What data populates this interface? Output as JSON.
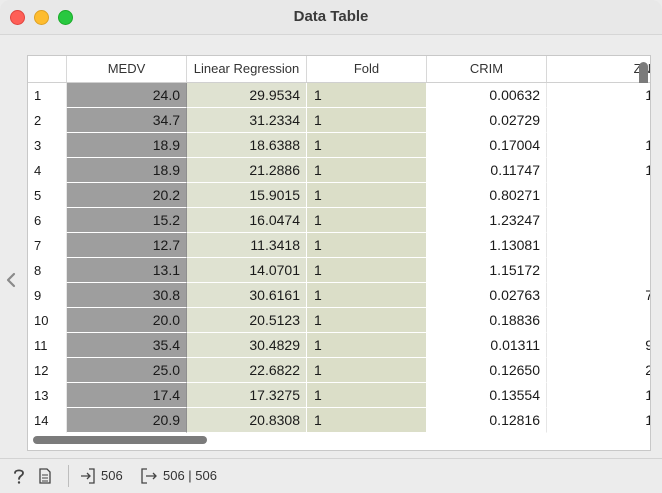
{
  "window": {
    "title": "Data Table"
  },
  "table": {
    "columns": [
      "MEDV",
      "Linear Regression",
      "Fold",
      "CRIM",
      "ZN"
    ],
    "rows": [
      {
        "idx": "1",
        "medv": "24.0",
        "lr": "29.9534",
        "fold": "1",
        "crim": "0.00632",
        "zn": "1"
      },
      {
        "idx": "2",
        "medv": "34.7",
        "lr": "31.2334",
        "fold": "1",
        "crim": "0.02729",
        "zn": ""
      },
      {
        "idx": "3",
        "medv": "18.9",
        "lr": "18.6388",
        "fold": "1",
        "crim": "0.17004",
        "zn": "1"
      },
      {
        "idx": "4",
        "medv": "18.9",
        "lr": "21.2886",
        "fold": "1",
        "crim": "0.11747",
        "zn": "1"
      },
      {
        "idx": "5",
        "medv": "20.2",
        "lr": "15.9015",
        "fold": "1",
        "crim": "0.80271",
        "zn": ""
      },
      {
        "idx": "6",
        "medv": "15.2",
        "lr": "16.0474",
        "fold": "1",
        "crim": "1.23247",
        "zn": ""
      },
      {
        "idx": "7",
        "medv": "12.7",
        "lr": "11.3418",
        "fold": "1",
        "crim": "1.13081",
        "zn": ""
      },
      {
        "idx": "8",
        "medv": "13.1",
        "lr": "14.0701",
        "fold": "1",
        "crim": "1.15172",
        "zn": ""
      },
      {
        "idx": "9",
        "medv": "30.8",
        "lr": "30.6161",
        "fold": "1",
        "crim": "0.02763",
        "zn": "7"
      },
      {
        "idx": "10",
        "medv": "20.0",
        "lr": "20.5123",
        "fold": "1",
        "crim": "0.18836",
        "zn": ""
      },
      {
        "idx": "11",
        "medv": "35.4",
        "lr": "30.4829",
        "fold": "1",
        "crim": "0.01311",
        "zn": "9"
      },
      {
        "idx": "12",
        "medv": "25.0",
        "lr": "22.6822",
        "fold": "1",
        "crim": "0.12650",
        "zn": "2"
      },
      {
        "idx": "13",
        "medv": "17.4",
        "lr": "17.3275",
        "fold": "1",
        "crim": "0.13554",
        "zn": "1"
      },
      {
        "idx": "14",
        "medv": "20.9",
        "lr": "20.8308",
        "fold": "1",
        "crim": "0.12816",
        "zn": "1"
      }
    ]
  },
  "status": {
    "help_icon": "question-icon",
    "report_icon": "document-icon",
    "input_count": "506",
    "output_count": "506 | 506"
  },
  "colors": {
    "medv_bg": "#9e9e9e",
    "meta_bg": "#dfe2d1"
  }
}
